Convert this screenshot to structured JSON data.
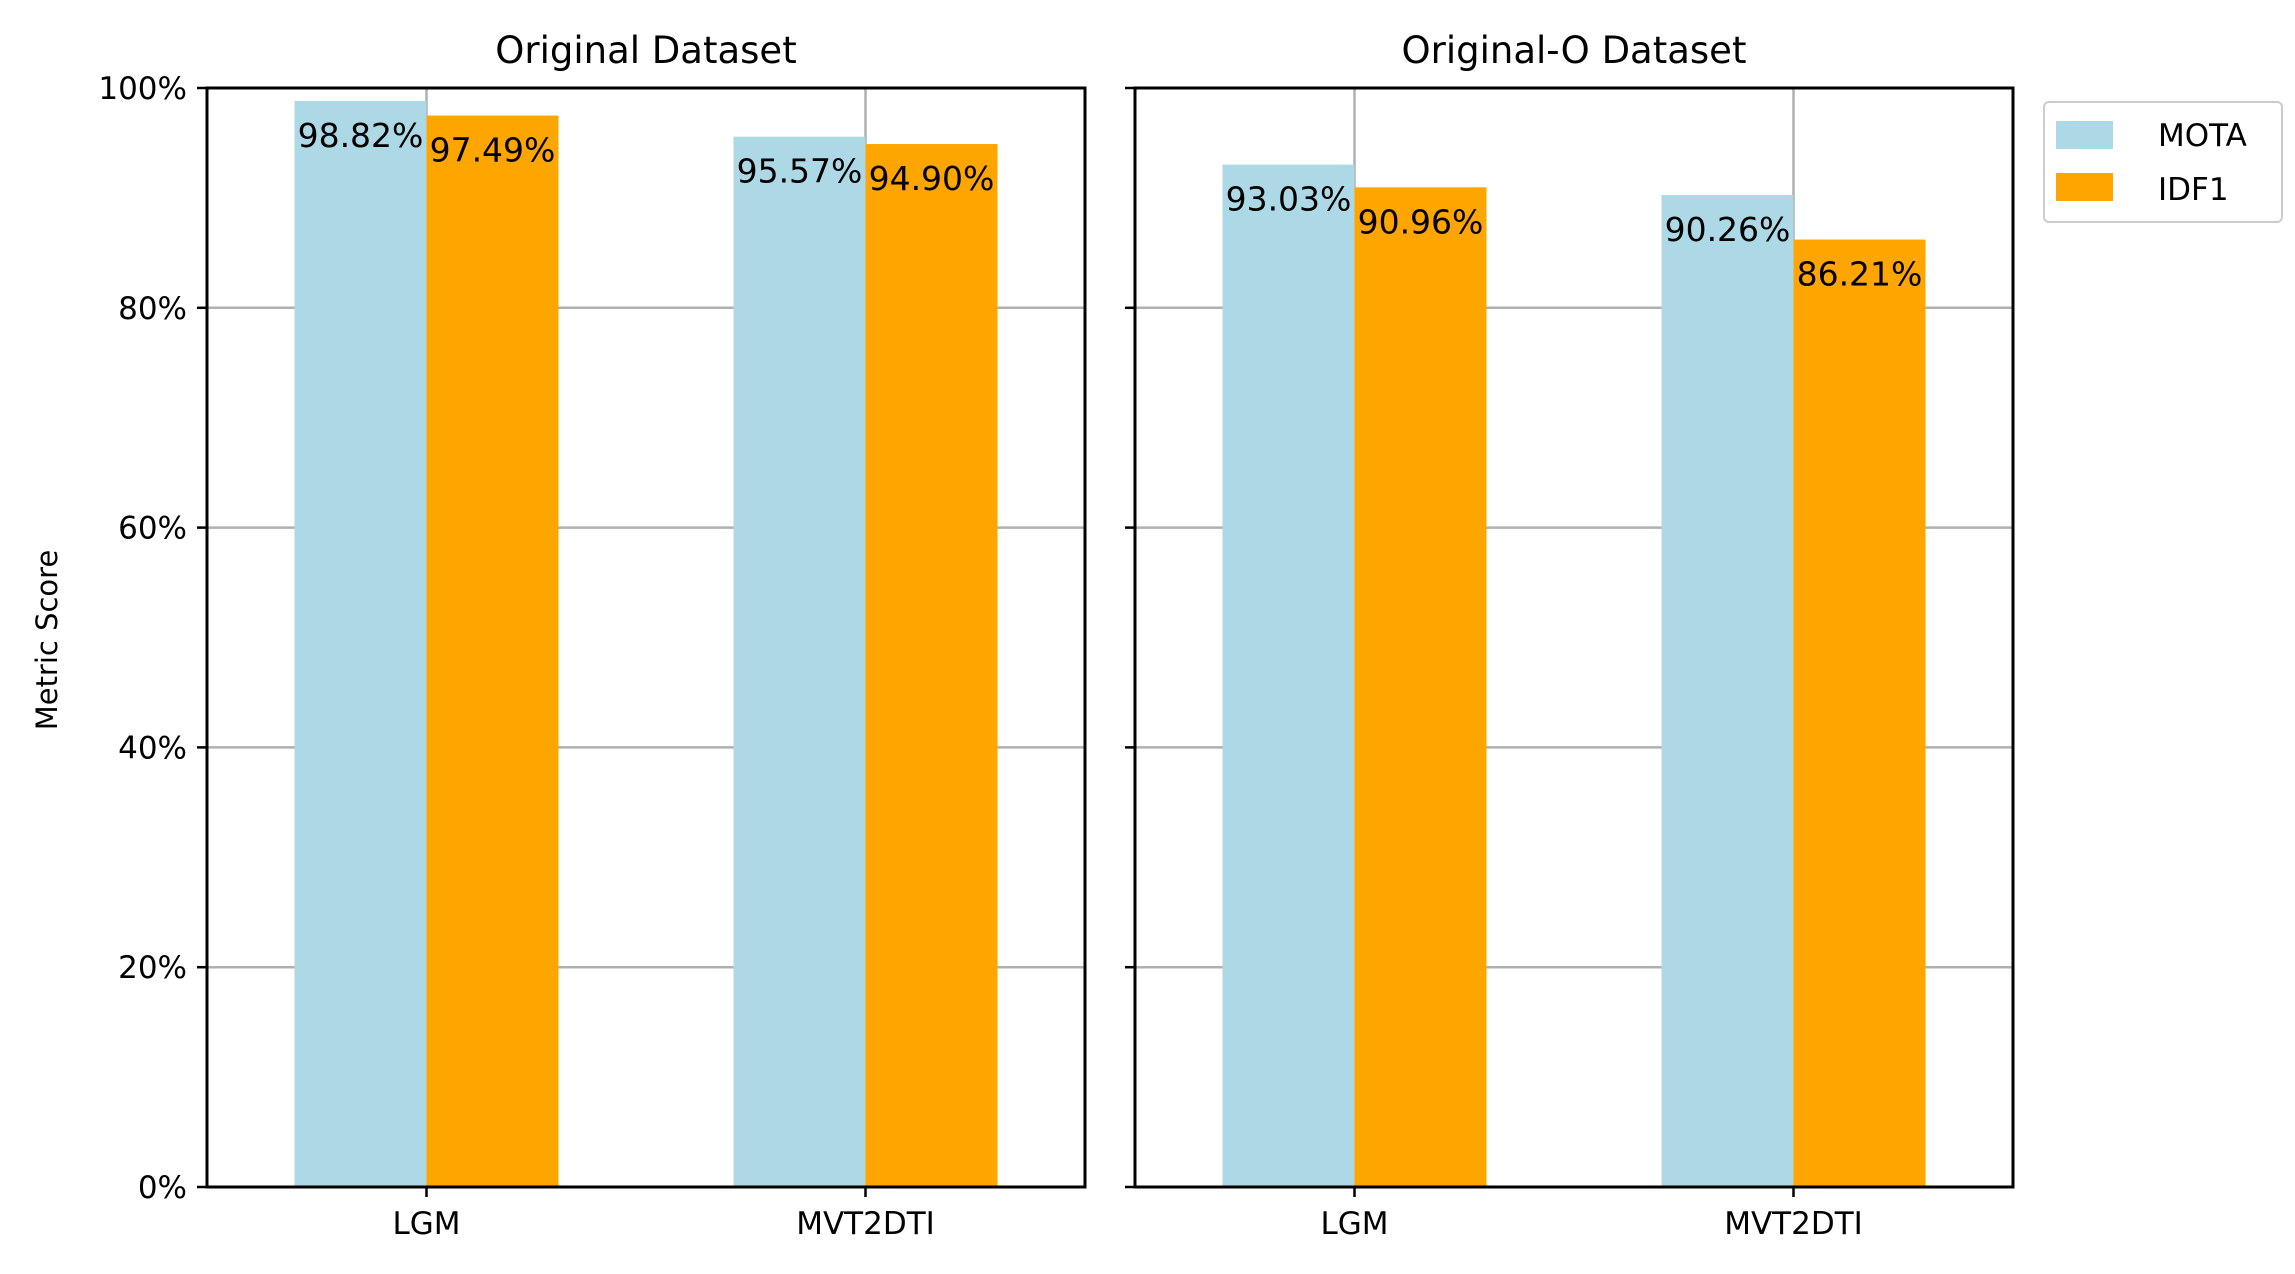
{
  "chart_data": [
    {
      "type": "bar",
      "title": "Original Dataset",
      "categories": [
        "LGM",
        "MVT2DTI"
      ],
      "series": [
        {
          "name": "MOTA",
          "values": [
            98.82,
            95.57
          ]
        },
        {
          "name": "IDF1",
          "values": [
            97.49,
            94.9
          ]
        }
      ],
      "data_labels": [
        [
          "98.82%",
          "97.49%"
        ],
        [
          "95.57%",
          "94.90%"
        ]
      ],
      "ylabel": "Metric Score",
      "xlabel": "",
      "ylim": [
        0,
        100
      ],
      "yticks": [
        "0%",
        "20%",
        "40%",
        "60%",
        "80%",
        "100%"
      ],
      "grid": "y-major and x at category centers"
    },
    {
      "type": "bar",
      "title": "Original-O Dataset",
      "categories": [
        "LGM",
        "MVT2DTI"
      ],
      "series": [
        {
          "name": "MOTA",
          "values": [
            93.03,
            90.26
          ]
        },
        {
          "name": "IDF1",
          "values": [
            90.96,
            86.21
          ]
        }
      ],
      "data_labels": [
        [
          "93.03%",
          "90.96%"
        ],
        [
          "90.26%",
          "86.21%"
        ]
      ],
      "ylabel": "",
      "xlabel": "",
      "ylim": [
        0,
        100
      ],
      "grid": "y-major and x at category centers"
    }
  ],
  "legend": {
    "position": "right, outside",
    "items": [
      {
        "label": "MOTA",
        "color": "#ADD8E6"
      },
      {
        "label": "IDF1",
        "color": "#FFA500"
      }
    ]
  },
  "colors": {
    "MOTA": "#ADD8E6",
    "IDF1": "#FFA500",
    "grid": "#b0b0b0"
  }
}
